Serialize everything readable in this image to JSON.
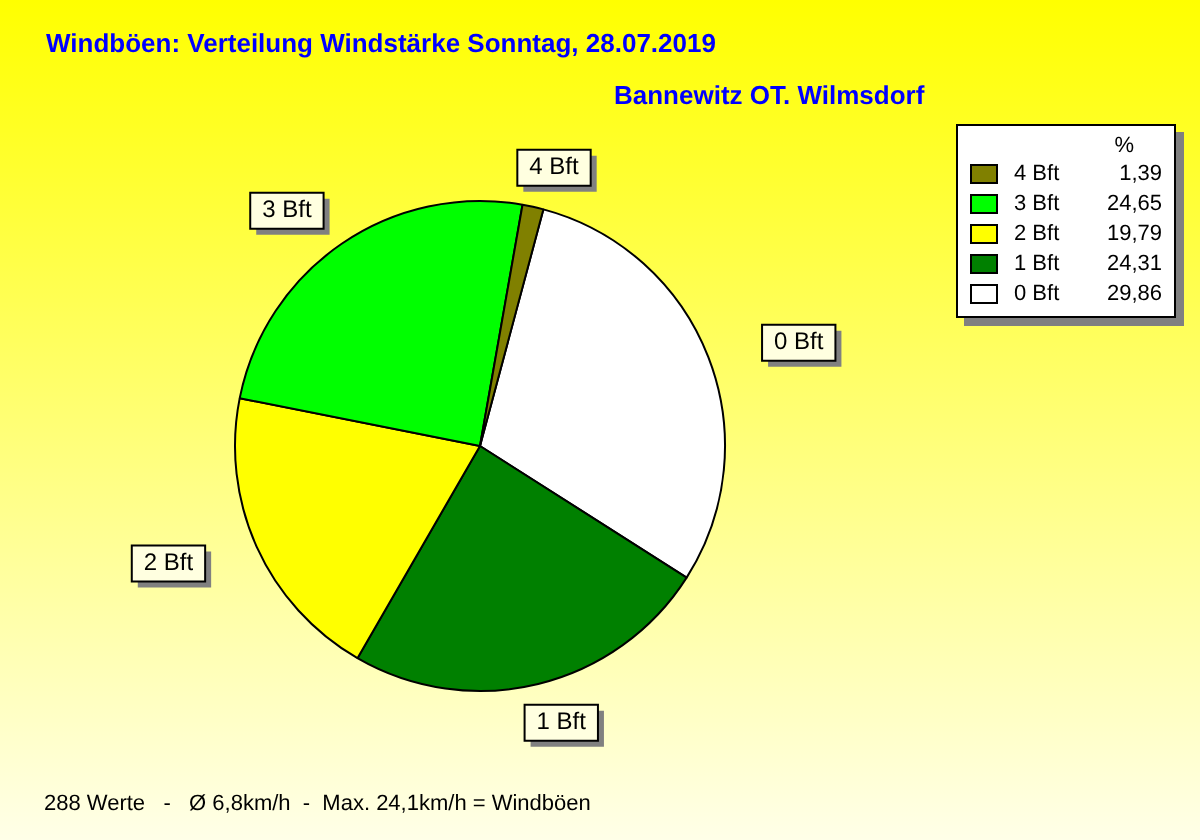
{
  "chart_data": {
    "type": "pie",
    "title": "Windböen: Verteilung Windstärke  Sonntag, 28.07.2019",
    "subtitle": "Bannewitz OT. Wilmsdorf",
    "categories": [
      "0 Bft",
      "1 Bft",
      "2 Bft",
      "3 Bft",
      "4 Bft"
    ],
    "values": [
      29.86,
      24.31,
      19.79,
      24.65,
      1.39
    ],
    "value_labels": [
      "29,86",
      "24,31",
      "19,79",
      "24,65",
      "1,39"
    ],
    "colors": [
      "#ffffff",
      "#008000",
      "#ffff00",
      "#00ff00",
      "#808000"
    ],
    "legend": "top right",
    "legend_title": "%",
    "annotations": [
      "288 Werte   -   Ø 6,8km/h  -  Max. 24,1km/h = Windböen"
    ]
  }
}
